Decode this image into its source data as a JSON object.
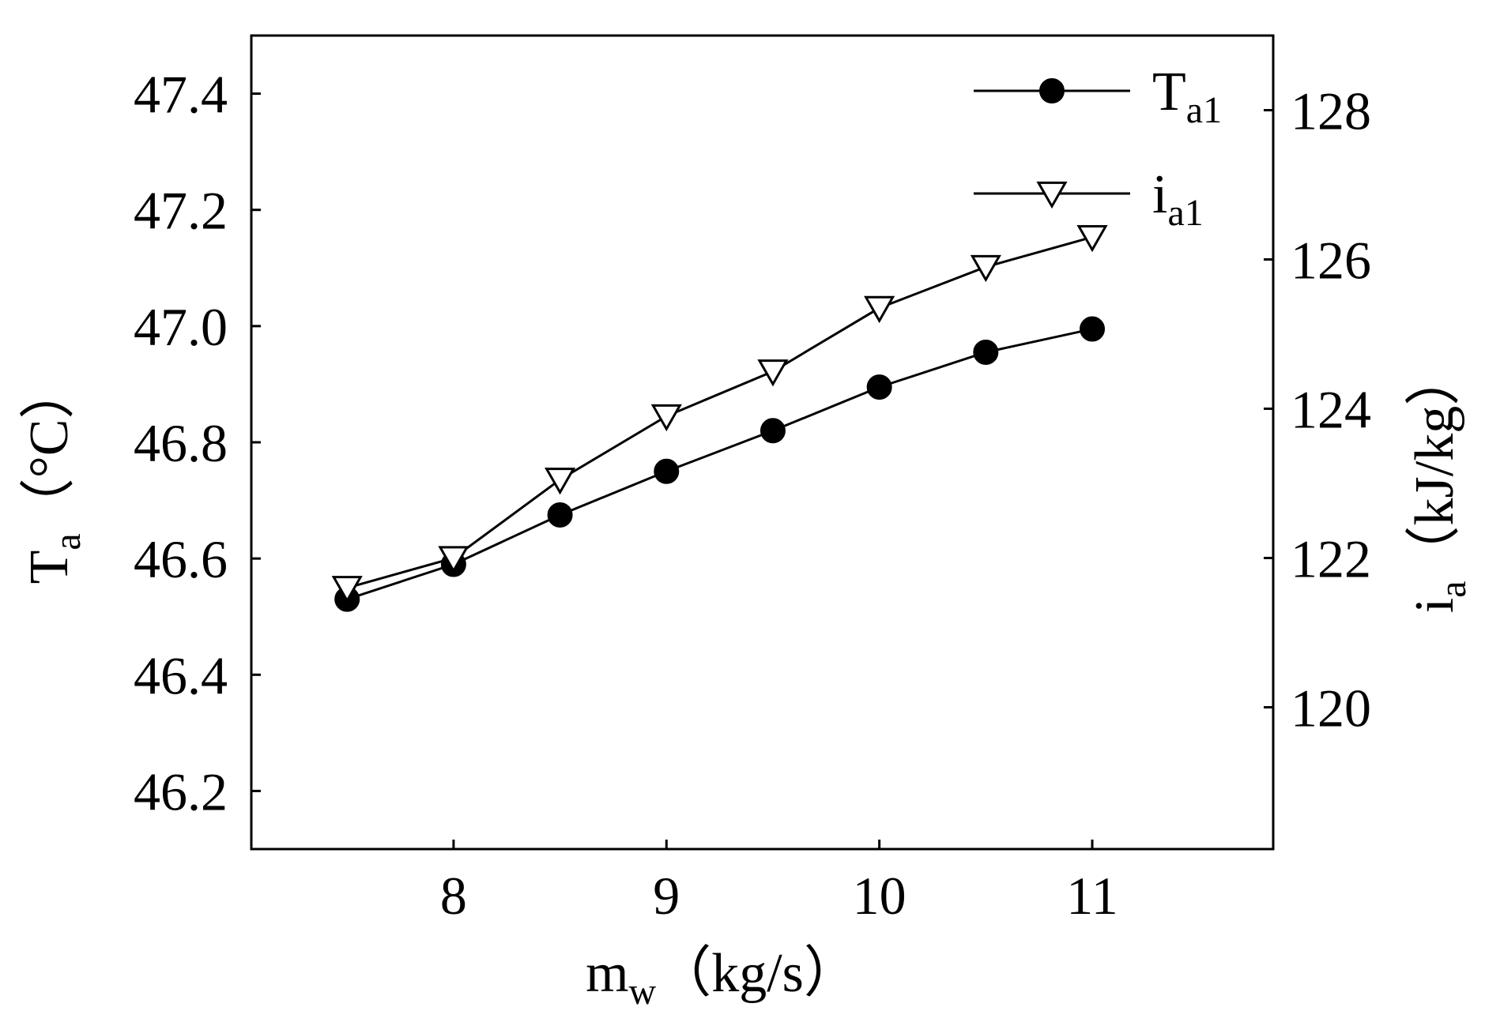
{
  "chart_data": {
    "type": "line",
    "title": "",
    "x": [
      7.5,
      8,
      8.5,
      9,
      9.5,
      10,
      10.5,
      11
    ],
    "xlim": [
      7.05,
      11.85
    ],
    "xticks": [
      8,
      9,
      10,
      11
    ],
    "xtick_labels": [
      "8",
      "9",
      "10",
      "11"
    ],
    "xlabel": {
      "main": "m",
      "sub": "w",
      "rest": "（kg/s）"
    },
    "ylim_left": [
      46.1,
      47.5
    ],
    "yticks_left": [
      46.2,
      46.4,
      46.6,
      46.8,
      47.0,
      47.2,
      47.4
    ],
    "ytick_labels_left": [
      "46.2",
      "46.4",
      "46.6",
      "46.8",
      "47.0",
      "47.2",
      "47.4"
    ],
    "ylabel_left": {
      "main": "T",
      "sub": "a",
      "rest": "（°C）"
    },
    "ylim_right": [
      118.1,
      129.0
    ],
    "yticks_right": [
      120,
      122,
      124,
      126,
      128
    ],
    "ytick_labels_right": [
      "120",
      "122",
      "124",
      "126",
      "128"
    ],
    "ylabel_right": {
      "main": "i",
      "sub": "a",
      "rest": "（kJ/kg）"
    },
    "series": [
      {
        "name_main": "T",
        "name_sub": "a1",
        "axis": "left",
        "marker": "filled-circle",
        "values": [
          46.53,
          46.59,
          46.675,
          46.75,
          46.82,
          46.895,
          46.955,
          46.995
        ]
      },
      {
        "name_main": "i",
        "name_sub": "a1",
        "axis": "right",
        "marker": "open-down-triangle",
        "values": [
          121.6,
          122.0,
          123.05,
          123.9,
          124.5,
          125.35,
          125.9,
          126.3
        ]
      }
    ],
    "legend_position": "top-right",
    "grid": false
  },
  "colors": {
    "line": "#000000",
    "background": "#ffffff"
  }
}
